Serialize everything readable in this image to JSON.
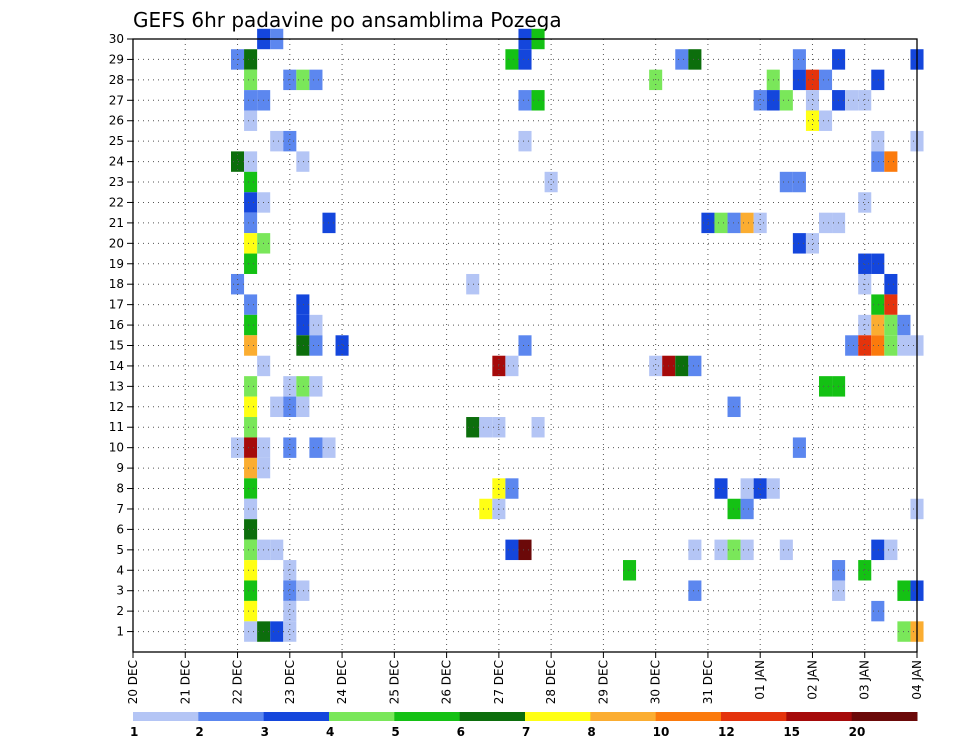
{
  "chart_data": {
    "type": "heatmap",
    "title": "GEFS 6hr padavine po ansamblima Pozega",
    "xlabel": "",
    "ylabel": "",
    "x_ticks": [
      "20 DEC",
      "21 DEC",
      "22 DEC",
      "23 DEC",
      "24 DEC",
      "25 DEC",
      "26 DEC",
      "27 DEC",
      "28 DEC",
      "29 DEC",
      "30 DEC",
      "31 DEC",
      "01 JAN",
      "02 JAN",
      "03 JAN",
      "04 JAN"
    ],
    "xlim": [
      0,
      60
    ],
    "x_units": "6-hour steps from 20 DEC 00UTC",
    "y_ticks": [
      1,
      2,
      3,
      4,
      5,
      6,
      7,
      8,
      9,
      10,
      11,
      12,
      13,
      14,
      15,
      16,
      17,
      18,
      19,
      20,
      21,
      22,
      23,
      24,
      25,
      26,
      27,
      28,
      29,
      30
    ],
    "ylim": [
      0,
      30
    ],
    "grid": true,
    "levels": [
      1,
      2,
      3,
      4,
      5,
      6,
      7,
      8,
      10,
      12,
      15,
      20
    ],
    "colorbar_labels": [
      "1",
      "2",
      "3",
      "4",
      "5",
      "6",
      "7",
      "8",
      "10",
      "12",
      "15",
      "20"
    ],
    "colors": [
      "#b4c5f5",
      "#5c87ef",
      "#1446dc",
      "#7ae75a",
      "#14c114",
      "#0c6e0c",
      "#ffff14",
      "#fbad31",
      "#fb7a0c",
      "#e4330c",
      "#a50a0a",
      "#6b0909"
    ],
    "cells": [
      [
        10,
        30,
        2
      ],
      [
        11,
        30,
        1
      ],
      [
        30,
        30,
        2
      ],
      [
        31,
        30,
        4
      ],
      [
        8,
        29,
        1
      ],
      [
        9,
        29,
        5
      ],
      [
        29,
        29,
        4
      ],
      [
        30,
        29,
        2
      ],
      [
        42,
        29,
        1
      ],
      [
        43,
        29,
        5
      ],
      [
        51,
        29,
        1
      ],
      [
        54,
        29,
        2
      ],
      [
        60,
        29,
        2
      ],
      [
        9,
        28,
        3
      ],
      [
        12,
        28,
        1
      ],
      [
        13,
        28,
        3
      ],
      [
        14,
        28,
        1
      ],
      [
        40,
        28,
        3
      ],
      [
        49,
        28,
        3
      ],
      [
        51,
        28,
        2
      ],
      [
        52,
        28,
        9
      ],
      [
        53,
        28,
        1
      ],
      [
        57,
        28,
        2
      ],
      [
        9,
        27,
        1
      ],
      [
        10,
        27,
        1
      ],
      [
        30,
        27,
        1
      ],
      [
        31,
        27,
        4
      ],
      [
        48,
        27,
        1
      ],
      [
        49,
        27,
        2
      ],
      [
        50,
        27,
        3
      ],
      [
        52,
        27,
        0
      ],
      [
        54,
        27,
        2
      ],
      [
        55,
        27,
        0
      ],
      [
        56,
        27,
        0
      ],
      [
        9,
        26,
        0
      ],
      [
        52,
        26,
        6
      ],
      [
        53,
        26,
        0
      ],
      [
        11,
        25,
        0
      ],
      [
        12,
        25,
        1
      ],
      [
        30,
        25,
        0
      ],
      [
        57,
        25,
        0
      ],
      [
        60,
        25,
        0
      ],
      [
        8,
        24,
        5
      ],
      [
        9,
        24,
        0
      ],
      [
        13,
        24,
        0
      ],
      [
        57,
        24,
        1
      ],
      [
        58,
        24,
        8
      ],
      [
        9,
        23,
        4
      ],
      [
        32,
        23,
        0
      ],
      [
        50,
        23,
        1
      ],
      [
        51,
        23,
        1
      ],
      [
        9,
        22,
        2
      ],
      [
        10,
        22,
        0
      ],
      [
        56,
        22,
        0
      ],
      [
        9,
        21,
        1
      ],
      [
        15,
        21,
        2
      ],
      [
        44,
        21,
        2
      ],
      [
        45,
        21,
        3
      ],
      [
        46,
        21,
        1
      ],
      [
        47,
        21,
        7
      ],
      [
        48,
        21,
        0
      ],
      [
        53,
        21,
        0
      ],
      [
        54,
        21,
        0
      ],
      [
        9,
        20,
        6
      ],
      [
        10,
        20,
        3
      ],
      [
        51,
        20,
        2
      ],
      [
        52,
        20,
        0
      ],
      [
        9,
        19,
        4
      ],
      [
        56,
        19,
        2
      ],
      [
        57,
        19,
        2
      ],
      [
        8,
        18,
        1
      ],
      [
        26,
        18,
        0
      ],
      [
        56,
        18,
        0
      ],
      [
        58,
        18,
        2
      ],
      [
        9,
        17,
        1
      ],
      [
        13,
        17,
        2
      ],
      [
        57,
        17,
        4
      ],
      [
        58,
        17,
        9
      ],
      [
        9,
        16,
        4
      ],
      [
        13,
        16,
        2
      ],
      [
        14,
        16,
        0
      ],
      [
        56,
        16,
        0
      ],
      [
        57,
        16,
        7
      ],
      [
        58,
        16,
        3
      ],
      [
        59,
        16,
        1
      ],
      [
        9,
        15,
        7
      ],
      [
        13,
        15,
        5
      ],
      [
        14,
        15,
        1
      ],
      [
        16,
        15,
        2
      ],
      [
        30,
        15,
        1
      ],
      [
        55,
        15,
        1
      ],
      [
        56,
        15,
        9
      ],
      [
        57,
        15,
        8
      ],
      [
        58,
        15,
        3
      ],
      [
        59,
        15,
        0
      ],
      [
        60,
        15,
        0
      ],
      [
        10,
        14,
        0
      ],
      [
        28,
        14,
        10
      ],
      [
        29,
        14,
        0
      ],
      [
        40,
        14,
        0
      ],
      [
        41,
        14,
        10
      ],
      [
        42,
        14,
        5
      ],
      [
        43,
        14,
        1
      ],
      [
        9,
        13,
        3
      ],
      [
        12,
        13,
        0
      ],
      [
        13,
        13,
        3
      ],
      [
        14,
        13,
        0
      ],
      [
        53,
        13,
        4
      ],
      [
        54,
        13,
        4
      ],
      [
        9,
        12,
        6
      ],
      [
        11,
        12,
        0
      ],
      [
        12,
        12,
        1
      ],
      [
        13,
        12,
        0
      ],
      [
        46,
        12,
        1
      ],
      [
        9,
        11,
        3
      ],
      [
        26,
        11,
        5
      ],
      [
        27,
        11,
        0
      ],
      [
        28,
        11,
        0
      ],
      [
        31,
        11,
        0
      ],
      [
        8,
        10,
        0
      ],
      [
        9,
        10,
        10
      ],
      [
        10,
        10,
        0
      ],
      [
        12,
        10,
        1
      ],
      [
        14,
        10,
        1
      ],
      [
        15,
        10,
        0
      ],
      [
        51,
        10,
        1
      ],
      [
        9,
        9,
        7
      ],
      [
        10,
        9,
        0
      ],
      [
        9,
        8,
        4
      ],
      [
        28,
        8,
        6
      ],
      [
        29,
        8,
        1
      ],
      [
        45,
        8,
        2
      ],
      [
        47,
        8,
        0
      ],
      [
        48,
        8,
        2
      ],
      [
        49,
        8,
        0
      ],
      [
        9,
        7,
        0
      ],
      [
        27,
        7,
        6
      ],
      [
        28,
        7,
        0
      ],
      [
        46,
        7,
        4
      ],
      [
        47,
        7,
        1
      ],
      [
        60,
        7,
        0
      ],
      [
        9,
        6,
        5
      ],
      [
        9,
        5,
        3
      ],
      [
        10,
        5,
        0
      ],
      [
        11,
        5,
        0
      ],
      [
        29,
        5,
        2
      ],
      [
        30,
        5,
        11
      ],
      [
        43,
        5,
        0
      ],
      [
        45,
        5,
        0
      ],
      [
        46,
        5,
        3
      ],
      [
        47,
        5,
        0
      ],
      [
        50,
        5,
        0
      ],
      [
        57,
        5,
        2
      ],
      [
        58,
        5,
        0
      ],
      [
        9,
        4,
        6
      ],
      [
        12,
        4,
        0
      ],
      [
        38,
        4,
        4
      ],
      [
        54,
        4,
        1
      ],
      [
        56,
        4,
        4
      ],
      [
        9,
        3,
        4
      ],
      [
        12,
        3,
        1
      ],
      [
        13,
        3,
        0
      ],
      [
        43,
        3,
        1
      ],
      [
        54,
        3,
        0
      ],
      [
        59,
        3,
        4
      ],
      [
        60,
        3,
        2
      ],
      [
        9,
        2,
        6
      ],
      [
        12,
        2,
        0
      ],
      [
        57,
        2,
        1
      ],
      [
        9,
        1,
        0
      ],
      [
        10,
        1,
        5
      ],
      [
        11,
        1,
        2
      ],
      [
        12,
        1,
        0
      ],
      [
        59,
        1,
        3
      ],
      [
        60,
        1,
        7
      ]
    ]
  }
}
